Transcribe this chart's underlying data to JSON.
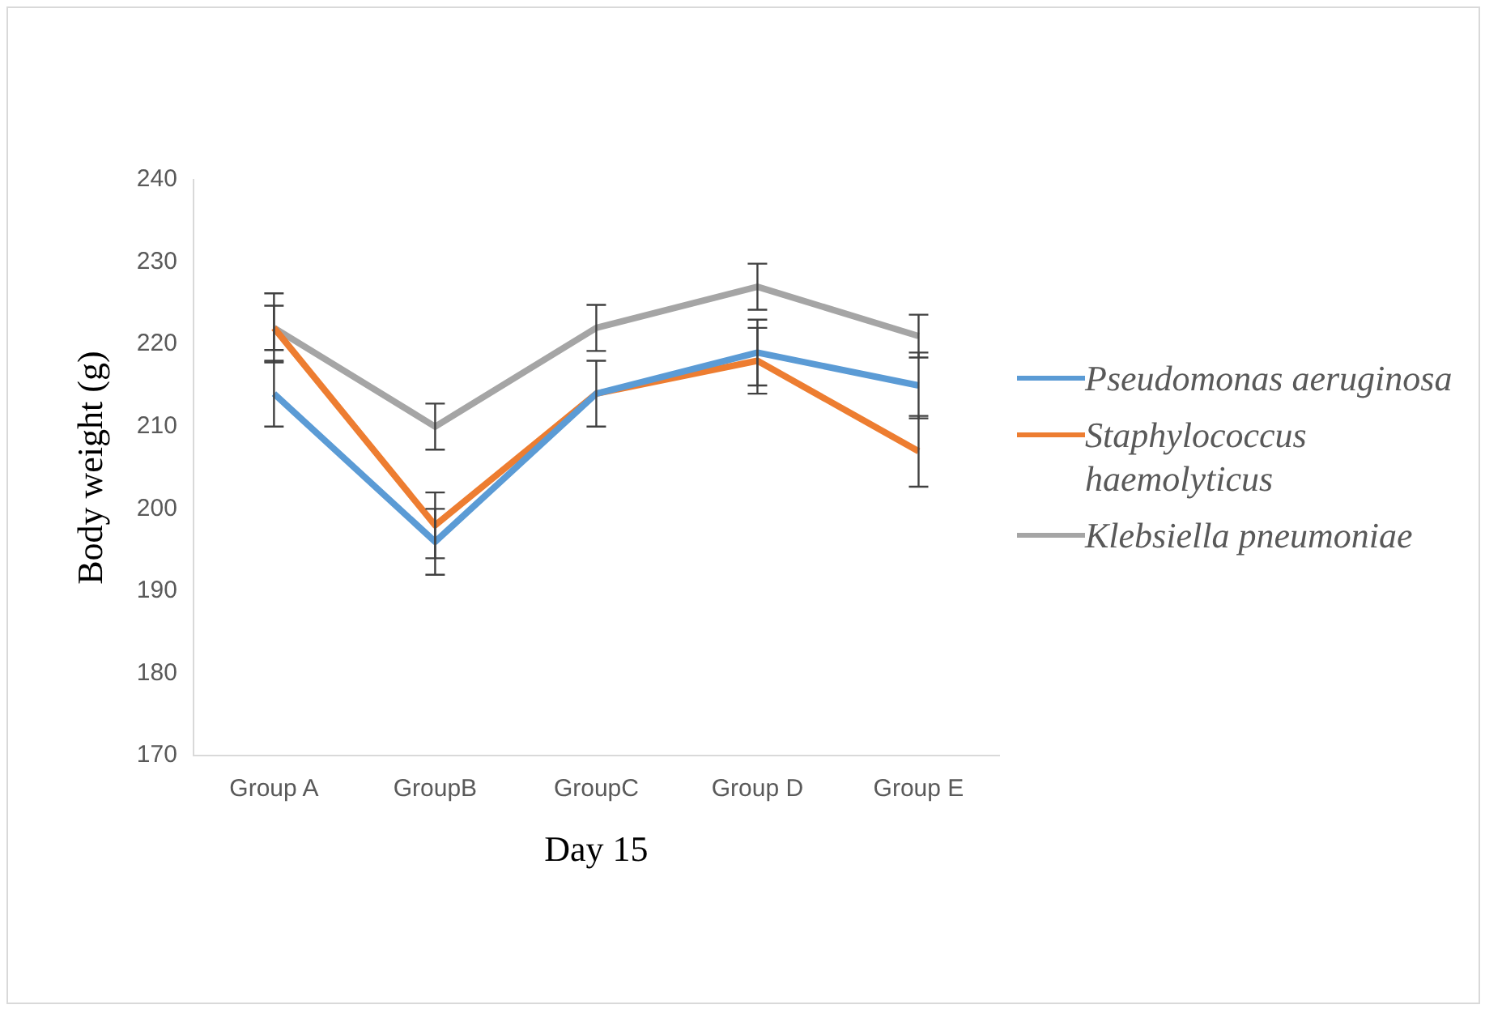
{
  "chart_data": {
    "type": "line",
    "xlabel": "Day 15",
    "ylabel": "Body weight (g)",
    "categories": [
      "Group A",
      "GroupB",
      "GroupC",
      "Group D",
      "Group E"
    ],
    "series": [
      {
        "name": "Pseudomonas aeruginosa",
        "color": "#5b9bd5",
        "values": [
          214,
          196,
          214,
          219,
          215
        ],
        "errors": [
          4,
          4,
          4,
          4,
          4
        ]
      },
      {
        "name": "Staphylococcus haemolyticus",
        "color": "#ed7d31",
        "values": [
          222,
          198,
          214,
          218,
          207
        ],
        "errors": [
          2.7,
          4,
          4,
          4,
          4.3
        ]
      },
      {
        "name": "Klebsiella pneumoniae",
        "color": "#a5a5a5",
        "values": [
          222,
          210,
          222,
          227,
          221
        ],
        "errors": [
          4.2,
          2.8,
          2.8,
          2.8,
          2.6
        ]
      }
    ],
    "ylim": [
      170,
      240
    ],
    "yticks": [
      170,
      180,
      190,
      200,
      210,
      220,
      230,
      240
    ],
    "grid": false,
    "legend": "right",
    "marker": "none",
    "line_style": "solid"
  }
}
